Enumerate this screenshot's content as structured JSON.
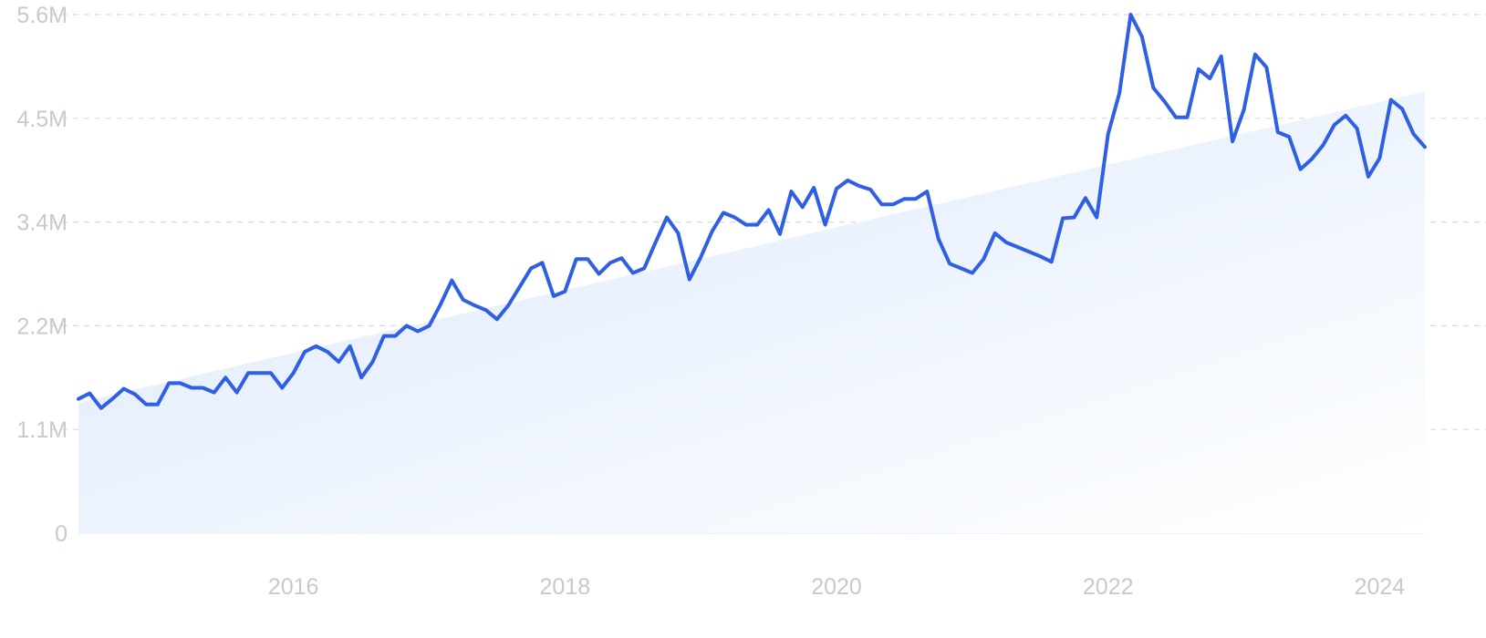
{
  "chart_data": {
    "type": "area",
    "title": "",
    "xlabel": "",
    "ylabel": "",
    "grid": true,
    "legend": "none",
    "x_range": [
      "2014-06",
      "2024-05"
    ],
    "ylim": [
      0,
      5600000
    ],
    "y_ticks": [
      {
        "value": 0,
        "label": "0"
      },
      {
        "value": 1120000,
        "label": "1.1M"
      },
      {
        "value": 2240000,
        "label": "2.2M"
      },
      {
        "value": 3360000,
        "label": "3.4M"
      },
      {
        "value": 4480000,
        "label": "4.5M"
      },
      {
        "value": 5600000,
        "label": "5.6M"
      }
    ],
    "x_ticks": [
      {
        "value": "2016-01",
        "label": "2016"
      },
      {
        "value": "2018-01",
        "label": "2018"
      },
      {
        "value": "2020-01",
        "label": "2020"
      },
      {
        "value": "2022-01",
        "label": "2022"
      },
      {
        "value": "2024-01",
        "label": "2024"
      }
    ],
    "colors": {
      "line": "#2f5fe3",
      "trend_fill_start": "#dbe8fb",
      "trend_fill_end": "#ffffff",
      "grid": "#d9dbe2",
      "tick_text": "#c7c9d1"
    },
    "series": [
      {
        "kind": "line",
        "x": [
          "2014-06",
          "2014-07",
          "2014-08",
          "2014-09",
          "2014-10",
          "2014-11",
          "2014-12",
          "2015-01",
          "2015-02",
          "2015-03",
          "2015-04",
          "2015-05",
          "2015-06",
          "2015-07",
          "2015-08",
          "2015-09",
          "2015-10",
          "2015-11",
          "2015-12",
          "2016-01",
          "2016-02",
          "2016-03",
          "2016-04",
          "2016-05",
          "2016-06",
          "2016-07",
          "2016-08",
          "2016-09",
          "2016-10",
          "2016-11",
          "2016-12",
          "2017-01",
          "2017-02",
          "2017-03",
          "2017-04",
          "2017-05",
          "2017-06",
          "2017-07",
          "2017-08",
          "2017-09",
          "2017-10",
          "2017-11",
          "2017-12",
          "2018-01",
          "2018-02",
          "2018-03",
          "2018-04",
          "2018-05",
          "2018-06",
          "2018-07",
          "2018-08",
          "2018-09",
          "2018-10",
          "2018-11",
          "2018-12",
          "2019-01",
          "2019-02",
          "2019-03",
          "2019-04",
          "2019-05",
          "2019-06",
          "2019-07",
          "2019-08",
          "2019-09",
          "2019-10",
          "2019-11",
          "2019-12",
          "2020-01",
          "2020-02",
          "2020-03",
          "2020-04",
          "2020-05",
          "2020-06",
          "2020-07",
          "2020-08",
          "2020-09",
          "2020-10",
          "2020-11",
          "2020-12",
          "2021-01",
          "2021-02",
          "2021-03",
          "2021-04",
          "2021-05",
          "2021-06",
          "2021-07",
          "2021-08",
          "2021-09",
          "2021-10",
          "2021-11",
          "2021-12",
          "2022-01",
          "2022-02",
          "2022-03",
          "2022-04",
          "2022-05",
          "2022-06",
          "2022-07",
          "2022-08",
          "2022-09",
          "2022-10",
          "2022-11",
          "2022-12",
          "2023-01",
          "2023-02",
          "2023-03",
          "2023-04",
          "2023-05",
          "2023-06",
          "2023-07",
          "2023-08",
          "2023-09",
          "2023-10",
          "2023-11",
          "2023-12",
          "2024-01",
          "2024-02",
          "2024-03",
          "2024-04",
          "2024-05"
        ],
        "values": [
          1450000,
          1510000,
          1350000,
          1450000,
          1560000,
          1500000,
          1390000,
          1390000,
          1620000,
          1620000,
          1570000,
          1570000,
          1520000,
          1680000,
          1520000,
          1730000,
          1730000,
          1730000,
          1570000,
          1730000,
          1960000,
          2020000,
          1960000,
          1850000,
          2020000,
          1680000,
          1850000,
          2130000,
          2130000,
          2240000,
          2180000,
          2240000,
          2470000,
          2730000,
          2520000,
          2460000,
          2410000,
          2310000,
          2460000,
          2660000,
          2860000,
          2920000,
          2560000,
          2610000,
          2960000,
          2960000,
          2800000,
          2920000,
          2970000,
          2810000,
          2860000,
          3140000,
          3410000,
          3240000,
          2740000,
          2980000,
          3260000,
          3460000,
          3410000,
          3330000,
          3330000,
          3490000,
          3230000,
          3690000,
          3520000,
          3730000,
          3330000,
          3720000,
          3810000,
          3750000,
          3710000,
          3550000,
          3550000,
          3610000,
          3610000,
          3690000,
          3180000,
          2910000,
          2860000,
          2810000,
          2960000,
          3240000,
          3140000,
          3090000,
          3040000,
          2990000,
          2930000,
          3400000,
          3410000,
          3620000,
          3410000,
          4310000,
          4750000,
          5600000,
          5360000,
          4810000,
          4660000,
          4490000,
          4490000,
          5010000,
          4910000,
          5150000,
          4230000,
          4570000,
          5170000,
          5030000,
          4330000,
          4280000,
          3930000,
          4040000,
          4190000,
          4410000,
          4510000,
          4370000,
          3850000,
          4050000,
          4680000,
          4580000,
          4310000,
          4170000
        ]
      },
      {
        "kind": "trend-area",
        "x": [
          "2014-06",
          "2024-05"
        ],
        "values": [
          1410000,
          4770000
        ]
      }
    ]
  }
}
